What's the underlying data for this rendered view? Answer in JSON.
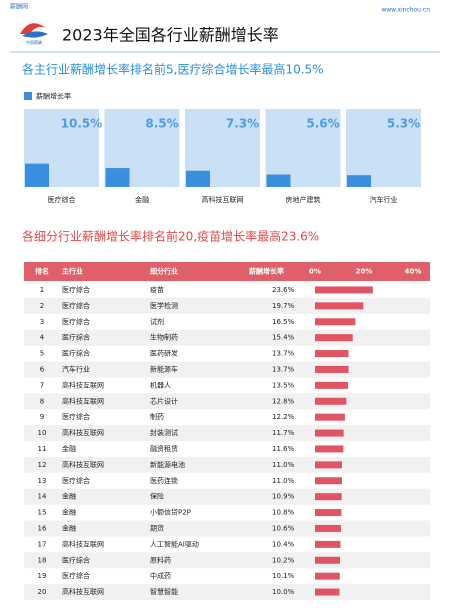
{
  "header": {
    "site": "薪酬网",
    "url": "www.xinchou.cn",
    "logo": "中国薪酬",
    "title": "2023年全国各行业薪酬增长率"
  },
  "chart_data": [
    {
      "type": "bar",
      "title": "各主行业薪酬增长率排名前5,医疗综合增长率最高10.5%",
      "categories": [
        "医疗综合",
        "金融",
        "高科技互联网",
        "房地产建筑",
        "汽车行业"
      ],
      "series": [
        {
          "name": "薪酬增长率",
          "color": "#3b8fe0",
          "values": [
            10.5,
            8.5,
            7.3,
            5.6,
            5.3
          ],
          "value_labels": [
            "10.5%",
            "8.5%",
            "7.3%",
            "5.6%",
            "5.3%"
          ]
        }
      ],
      "ylim": [
        0,
        35
      ],
      "legend": "top-left"
    },
    {
      "type": "table",
      "title": "各细分行业薪酬增长率排名前20,疫苗增长率最高23.6%",
      "columns": [
        "排名",
        "主行业",
        "细分行业",
        "薪酬增长率"
      ],
      "ranks": [
        1,
        2,
        3,
        4,
        5,
        6,
        7,
        8,
        9,
        10,
        11,
        12,
        13,
        14,
        15,
        16,
        17,
        18,
        19,
        20
      ],
      "main": [
        "医疗综合",
        "医疗综合",
        "医疗综合",
        "医疗综合",
        "医疗综合",
        "汽车行业",
        "高科技互联网",
        "高科技互联网",
        "医疗综合",
        "高科技互联网",
        "金融",
        "高科技互联网",
        "医疗综合",
        "金融",
        "金融",
        "金融",
        "高科技互联网",
        "医疗综合",
        "医疗综合",
        "高科技互联网"
      ],
      "sub": [
        "疫苗",
        "医学检测",
        "试剂",
        "生物制药",
        "医药研发",
        "新能源车",
        "机器人",
        "芯片设计",
        "制药",
        "封装测试",
        "融资租赁",
        "新能源电池",
        "医药连锁",
        "保险",
        "小额信贷P2P",
        "期货",
        "人工智能AI驱动",
        "原料药",
        "中成药",
        "智慧智能"
      ],
      "values": [
        23.6,
        19.7,
        16.5,
        15.4,
        13.7,
        13.7,
        13.5,
        12.8,
        12.2,
        11.7,
        11.6,
        11.0,
        11.0,
        10.9,
        10.8,
        10.6,
        10.4,
        10.2,
        10.1,
        10.0
      ],
      "value_labels": [
        "23.6%",
        "19.7%",
        "16.5%",
        "15.4%",
        "13.7%",
        "13.7%",
        "13.5%",
        "12.8%",
        "12.2%",
        "11.7%",
        "11.6%",
        "11.0%",
        "11.0%",
        "10.9%",
        "10.8%",
        "10.6%",
        "10.4%",
        "10.2%",
        "10.1%",
        "10.0%"
      ],
      "color": "#e05563",
      "header_color": "#e0606a",
      "xlim": [
        0,
        40
      ],
      "xticks": [
        {
          "value": 0,
          "label": "0%"
        },
        {
          "value": 20,
          "label": "20%"
        },
        {
          "value": 40,
          "label": "40%"
        }
      ]
    }
  ]
}
